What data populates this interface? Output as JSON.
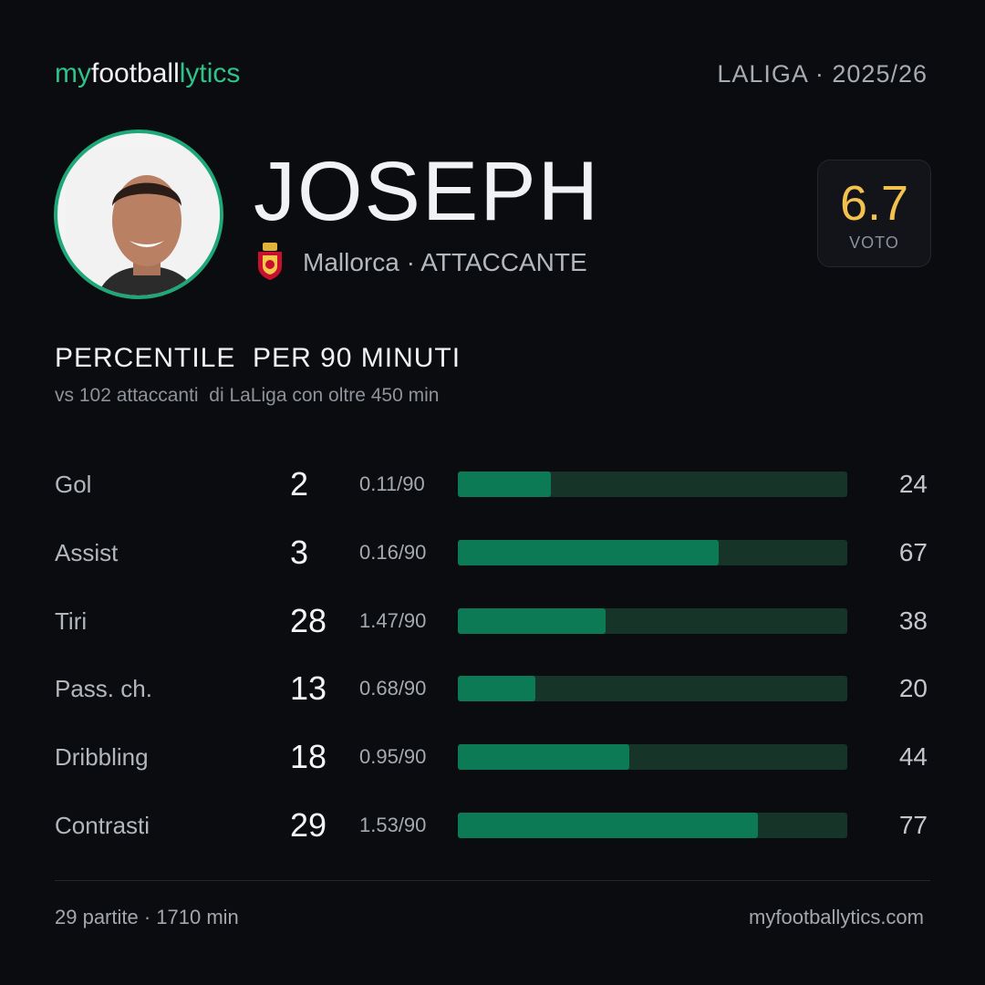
{
  "header": {
    "brand": [
      "my",
      "football",
      "lytics"
    ],
    "league": "LALIGA · 2025/26"
  },
  "player": {
    "name": "JOSEPH",
    "club_role": "Mallorca · ATTACCANTE"
  },
  "rating": {
    "value": 6.7,
    "label": "VOTO"
  },
  "section": {
    "title": "PERCENTILE  PER 90 MINUTI",
    "subtitle": "vs 102 attaccanti  di LaLiga con oltre 450 min"
  },
  "stats": {
    "xlim": [
      0,
      100
    ],
    "rows": [
      {
        "label": "Gol",
        "total": 2,
        "per90": "0.11/90",
        "percentile": 24
      },
      {
        "label": "Assist",
        "total": 3,
        "per90": "0.16/90",
        "percentile": 67
      },
      {
        "label": "Tiri",
        "total": 28,
        "per90": "1.47/90",
        "percentile": 38
      },
      {
        "label": "Pass. ch.",
        "total": 13,
        "per90": "0.68/90",
        "percentile": 20
      },
      {
        "label": "Dribbling",
        "total": 18,
        "per90": "0.95/90",
        "percentile": 44
      },
      {
        "label": "Contrasti",
        "total": 29,
        "per90": "1.53/90",
        "percentile": 77
      }
    ]
  },
  "footer": {
    "left": "29 partite · 1710 min",
    "right": "myfootballytics.com"
  }
}
